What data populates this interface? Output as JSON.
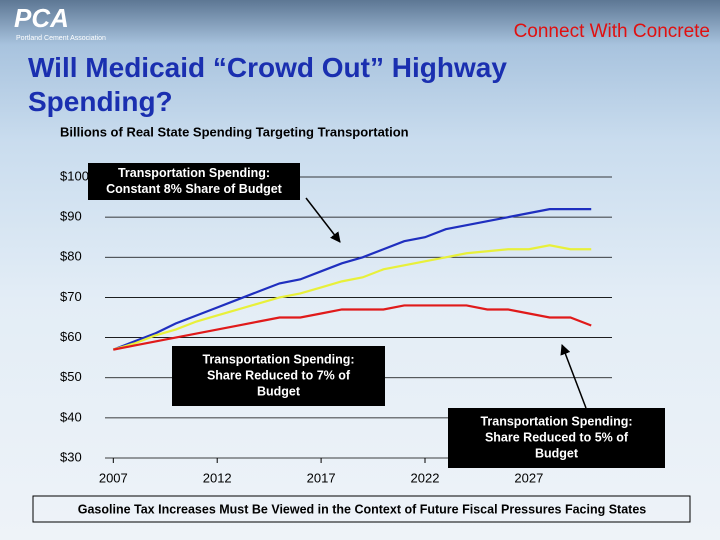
{
  "header": {
    "logo": "PCA",
    "logo_sub": "Portland Cement Association",
    "tagline": "Connect With Concrete"
  },
  "title": "Will Medicaid “Crowd Out” Highway Spending?",
  "footer": "Gasoline Tax Increases Must Be Viewed in the Context of Future Fiscal Pressures Facing States",
  "chart_data": {
    "type": "line",
    "title": "Billions of Real State Spending Targeting Transportation",
    "x": [
      2007,
      2008,
      2009,
      2010,
      2011,
      2012,
      2013,
      2014,
      2015,
      2016,
      2017,
      2018,
      2019,
      2020,
      2021,
      2022,
      2023,
      2024,
      2025,
      2026,
      2027,
      2028,
      2029,
      2030
    ],
    "series": [
      {
        "color": "#1f2fbf",
        "values": [
          57,
          59,
          61,
          63.5,
          65.5,
          67.5,
          69.5,
          71.5,
          73.5,
          74.5,
          76.5,
          78.5,
          80,
          82,
          84,
          85,
          87,
          88,
          89,
          90,
          91,
          92,
          92,
          92
        ]
      },
      {
        "color": "#e8f03a",
        "values": [
          57,
          58.5,
          60.5,
          62,
          64,
          65.5,
          67,
          68.5,
          70,
          71,
          72.5,
          74,
          75,
          77,
          78,
          79,
          80,
          81,
          81.5,
          82,
          82,
          83,
          82,
          82
        ]
      },
      {
        "color": "#e01a1a",
        "values": [
          57,
          58,
          59,
          60,
          61,
          62,
          63,
          64,
          65,
          65,
          66,
          67,
          67,
          67,
          68,
          68,
          68,
          68,
          67,
          67,
          66,
          65,
          65,
          63
        ]
      }
    ],
    "xlim": [
      2006.6,
      2031
    ],
    "xticks": [
      2007,
      2012,
      2017,
      2022,
      2027
    ],
    "ylim": [
      30,
      100
    ],
    "yticks": [
      {
        "value": 30,
        "label": "$30"
      },
      {
        "value": 40,
        "label": "$40"
      },
      {
        "value": 50,
        "label": "$50"
      },
      {
        "value": 60,
        "label": "$60"
      },
      {
        "value": 70,
        "label": "$70"
      },
      {
        "value": 80,
        "label": "$80"
      },
      {
        "value": 90,
        "label": "$90"
      },
      {
        "value": 100,
        "label": "$100"
      }
    ],
    "grid": true,
    "annotations": [
      {
        "lines": [
          "Transportation Spending:",
          "Constant 8% Share of Budget"
        ]
      },
      {
        "lines": [
          "Transportation Spending:",
          "Share Reduced to 7% of",
          "Budget"
        ]
      },
      {
        "lines": [
          "Transportation Spending:",
          "Share Reduced to 5% of",
          "Budget"
        ]
      }
    ]
  }
}
